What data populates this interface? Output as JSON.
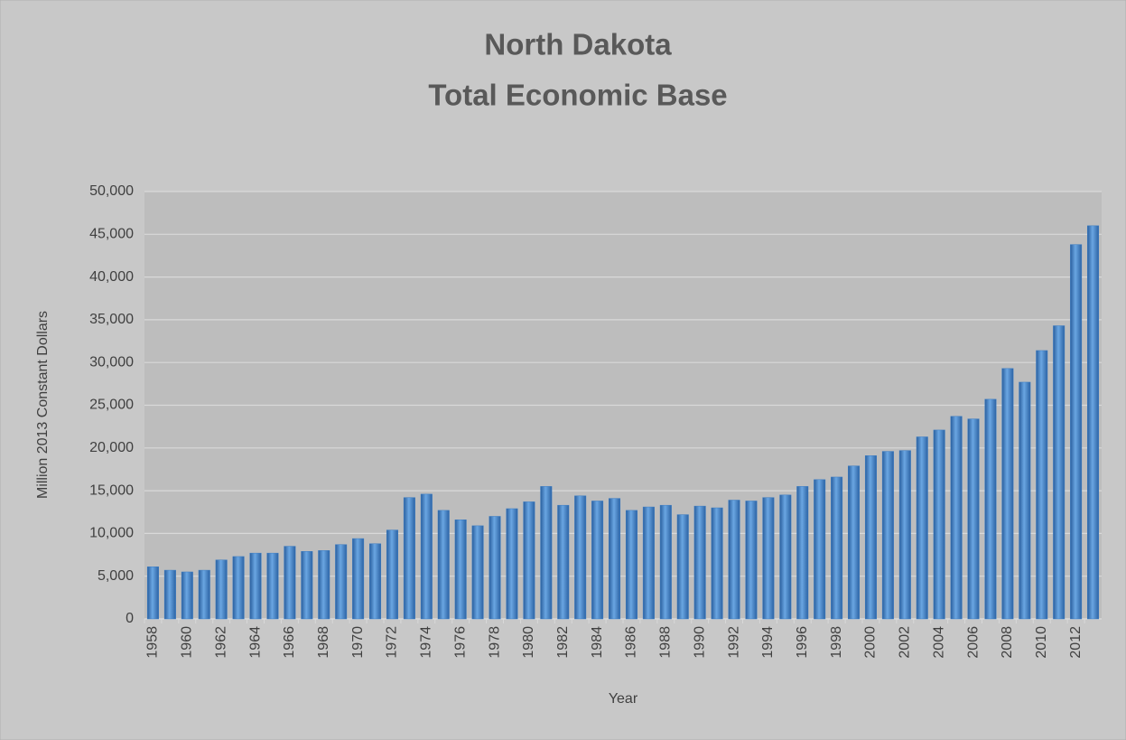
{
  "chart_data": {
    "type": "bar",
    "title": [
      "North Dakota",
      "Total Economic Base"
    ],
    "xlabel": "Year",
    "ylabel": "Million 2013 Constant Dollars",
    "categories": [
      "1958",
      null,
      "1960",
      null,
      "1962",
      null,
      "1964",
      null,
      "1966",
      null,
      "1968",
      null,
      "1970",
      null,
      "1972",
      null,
      "1974",
      null,
      "1976",
      null,
      "1978",
      null,
      "1980",
      null,
      "1982",
      null,
      "1984",
      null,
      "1986",
      null,
      "1988",
      null,
      "1990",
      null,
      "1992",
      null,
      "1994",
      null,
      "1996",
      null,
      "1998",
      null,
      "2000",
      null,
      "2002",
      null,
      "2004",
      null,
      "2006",
      null,
      "2008",
      null,
      "2010",
      null,
      "2012",
      null
    ],
    "values": [
      6100,
      5700,
      5500,
      5700,
      6900,
      7300,
      7700,
      7700,
      8500,
      7900,
      8000,
      8700,
      9400,
      8800,
      10400,
      14200,
      14600,
      12700,
      11600,
      10900,
      12000,
      12900,
      13700,
      15500,
      13300,
      14400,
      13800,
      14100,
      12700,
      13100,
      13300,
      12200,
      13200,
      13000,
      13900,
      13800,
      14200,
      14500,
      15500,
      16300,
      16600,
      17900,
      19100,
      19600,
      19700,
      21300,
      22100,
      23700,
      23400,
      25700,
      29300,
      27700,
      31400,
      34300,
      43800,
      46000
    ],
    "color": "#3a7cc4",
    "ylim": [
      0,
      50000
    ],
    "yticks": [
      0,
      {
        "value": 5000,
        "label": "5,000"
      },
      {
        "value": 10000,
        "label": "10,000"
      },
      {
        "value": 15000,
        "label": "15,000"
      },
      {
        "value": 20000,
        "label": "20,000"
      },
      {
        "value": 25000,
        "label": "25,000"
      },
      {
        "value": 30000,
        "label": "30,000"
      },
      {
        "value": 35000,
        "label": "35,000"
      },
      {
        "value": 40000,
        "label": "40,000"
      },
      {
        "value": 45000,
        "label": "45,000"
      },
      {
        "value": 50000,
        "label": "50,000"
      }
    ],
    "grid": true
  }
}
